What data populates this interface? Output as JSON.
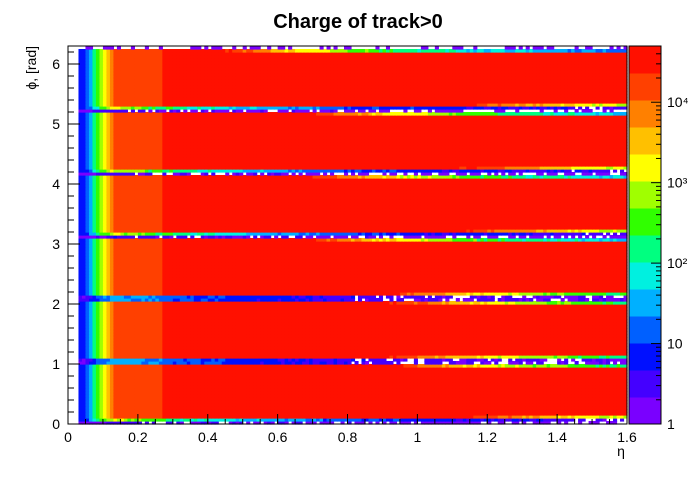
{
  "chart_data": {
    "type": "heatmap",
    "title": "Charge of track>0",
    "xlabel": "η",
    "ylabel": "ϕ, [rad]",
    "xlim": [
      0,
      1.6
    ],
    "ylim": [
      0,
      6.3
    ],
    "x_ticks": [
      "0",
      "0.2",
      "0.4",
      "0.6",
      "0.8",
      "1",
      "1.2",
      "1.4",
      "1.6"
    ],
    "x_tick_values": [
      0,
      0.2,
      0.4,
      0.6,
      0.8,
      1.0,
      1.2,
      1.4,
      1.6
    ],
    "y_ticks": [
      "0",
      "1",
      "2",
      "3",
      "4",
      "5",
      "6"
    ],
    "y_tick_values": [
      0,
      1,
      2,
      3,
      4,
      5,
      6
    ],
    "z_scale": "log",
    "zlim": [
      1,
      50000
    ],
    "z_ticks": [
      "1",
      "10",
      "10²",
      "10³",
      "10⁴"
    ],
    "z_tick_values": [
      1,
      10,
      100,
      1000,
      10000
    ],
    "sector_gaps_phi": [
      0.04,
      1.05,
      2.1,
      3.14,
      4.19,
      5.24,
      6.28
    ],
    "eta_profile": [
      {
        "eta": 0.05,
        "z": 8
      },
      {
        "eta": 0.07,
        "z": 60
      },
      {
        "eta": 0.09,
        "z": 700
      },
      {
        "eta": 0.11,
        "z": 3000
      },
      {
        "eta": 0.13,
        "z": 15000
      },
      {
        "eta": 0.3,
        "z": 25000
      },
      {
        "eta": 0.55,
        "z": 40000
      },
      {
        "eta": 1.6,
        "z": 40000
      }
    ],
    "grid": false,
    "legend": "colorbar-right",
    "palette": [
      "#7a00ff",
      "#4400ff",
      "#0010ff",
      "#0060ff",
      "#00b0ff",
      "#00f0e0",
      "#00ff80",
      "#30ff00",
      "#a0ff00",
      "#ffff00",
      "#ffc000",
      "#ff8000",
      "#ff4000",
      "#ff1000"
    ]
  }
}
